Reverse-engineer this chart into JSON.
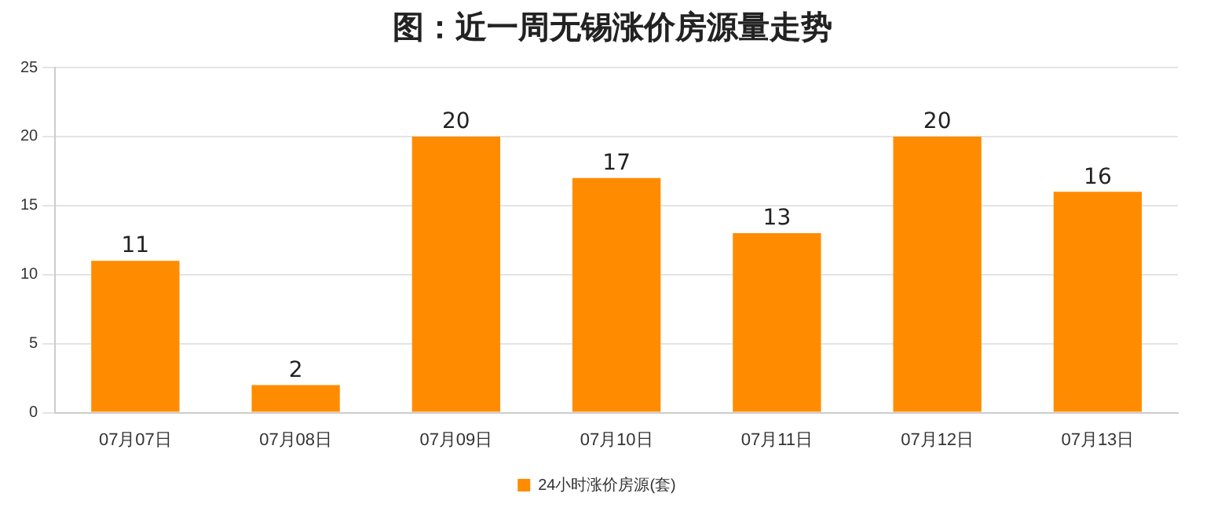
{
  "chart_data": {
    "type": "bar",
    "title": "图：近一周无锡涨价房源量走势",
    "categories": [
      "07月07日",
      "07月08日",
      "07月09日",
      "07月10日",
      "07月11日",
      "07月12日",
      "07月13日"
    ],
    "series": [
      {
        "name": "24小时涨价房源(套)",
        "color": "#ff8c00",
        "values": [
          11,
          2,
          20,
          17,
          13,
          20,
          16
        ]
      }
    ],
    "ylim": [
      0,
      25
    ],
    "yticks": [
      0,
      5,
      10,
      15,
      20,
      25
    ],
    "grid": "y",
    "legend": "bottom",
    "data_labels": true
  }
}
